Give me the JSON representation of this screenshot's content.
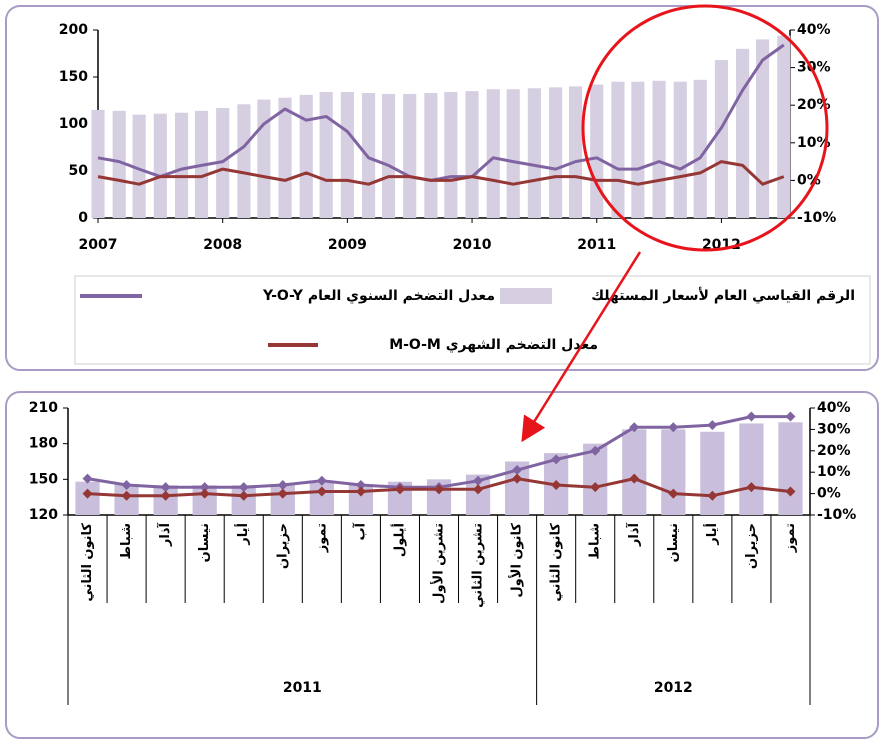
{
  "chart_data": [
    {
      "type": "bar_line",
      "x": [
        2007,
        2007.17,
        2007.33,
        2007.5,
        2007.67,
        2007.83,
        2008,
        2008.17,
        2008.33,
        2008.5,
        2008.67,
        2008.83,
        2009,
        2009.17,
        2009.33,
        2009.5,
        2009.67,
        2009.83,
        2010,
        2010.17,
        2010.33,
        2010.5,
        2010.67,
        2010.83,
        2011,
        2011.17,
        2011.33,
        2011.5,
        2011.67,
        2011.83,
        2012,
        2012.17,
        2012.33,
        2012.5
      ],
      "xlim": [
        2007,
        2012.55
      ],
      "xticks": [
        2007,
        2008,
        2009,
        2010,
        2011,
        2012
      ],
      "ylim": [
        0,
        200
      ],
      "yticks": [
        0,
        50,
        100,
        150,
        200
      ],
      "y2lim": [
        -10,
        40
      ],
      "y2ticks": [
        {
          "value": -10,
          "label": "-10%"
        },
        {
          "value": 0,
          "label": "0%"
        },
        {
          "value": 10,
          "label": "10%"
        },
        {
          "value": 20,
          "label": "20%"
        },
        {
          "value": 30,
          "label": "30%"
        },
        {
          "value": 40,
          "label": "40%"
        }
      ],
      "series": [
        {
          "name": "الرقم القياسي العام لأسعار المستهلك",
          "type": "bar",
          "color": "#d6cfe2",
          "values": [
            115,
            114,
            110,
            111,
            112,
            114,
            117,
            121,
            126,
            128,
            131,
            134,
            134,
            133,
            132,
            132,
            133,
            134,
            135,
            137,
            137,
            138,
            139,
            140,
            142,
            145,
            145,
            146,
            145,
            147,
            168,
            180,
            190,
            194
          ]
        },
        {
          "name": "معدل التضخم السنوي العام Y-O-Y",
          "type": "line",
          "axis": "y2",
          "color": "#8064a2",
          "values": [
            6,
            5,
            3,
            1,
            3,
            4,
            5,
            9,
            15,
            19,
            16,
            17,
            13,
            6,
            4,
            1,
            0,
            1,
            1,
            6,
            5,
            4,
            3,
            5,
            6,
            3,
            3,
            5,
            3,
            6,
            14,
            24,
            32,
            36
          ]
        },
        {
          "name": "معدل التضخم الشهري M-O-M",
          "type": "line",
          "axis": "y2",
          "color": "#953735",
          "values": [
            1,
            0,
            -1,
            1,
            1,
            1,
            3,
            2,
            1,
            0,
            2,
            0,
            0,
            -1,
            1,
            1,
            0,
            0,
            1,
            0,
            -1,
            0,
            1,
            1,
            0,
            0,
            -1,
            0,
            1,
            2,
            5,
            4,
            -1,
            1
          ]
        }
      ]
    },
    {
      "type": "bar_line",
      "categories": [
        "كانون الثاني",
        "شباط",
        "آذار",
        "نيسان",
        "أيار",
        "حزيران",
        "تموز",
        "آب",
        "أيلول",
        "تشرين الأول",
        "تشرين الثاني",
        "كانون الأول",
        "كانون الثاني",
        "شباط",
        "آذار",
        "نيسان",
        "أيار",
        "حزيران",
        "تموز"
      ],
      "category_years": [
        "2011",
        "2011",
        "2011",
        "2011",
        "2011",
        "2011",
        "2011",
        "2011",
        "2011",
        "2011",
        "2011",
        "2011",
        "2012",
        "2012",
        "2012",
        "2012",
        "2012",
        "2012",
        "2012"
      ],
      "ylim": [
        120,
        210
      ],
      "yticks": [
        120,
        150,
        180,
        210
      ],
      "y2lim": [
        -10,
        40
      ],
      "y2ticks": [
        {
          "value": -10,
          "label": "-10%"
        },
        {
          "value": 0,
          "label": "0%"
        },
        {
          "value": 10,
          "label": "10%"
        },
        {
          "value": 20,
          "label": "20%"
        },
        {
          "value": 30,
          "label": "30%"
        },
        {
          "value": 40,
          "label": "40%"
        }
      ],
      "series": [
        {
          "type": "bar",
          "color": "#c9bedb",
          "values": [
            148,
            146,
            145,
            145,
            145,
            146,
            147,
            146,
            148,
            150,
            154,
            165,
            172,
            180,
            192,
            192,
            190,
            197,
            198
          ]
        },
        {
          "type": "line",
          "axis": "y2",
          "color": "#8064a2",
          "markers": true,
          "values": [
            7,
            4,
            3,
            3,
            3,
            4,
            6,
            4,
            3,
            3,
            6,
            11,
            16,
            20,
            31,
            31,
            32,
            36,
            36
          ]
        },
        {
          "type": "line",
          "axis": "y2",
          "color": "#953735",
          "markers": true,
          "values": [
            0,
            -1,
            -1,
            0,
            -1,
            0,
            1,
            1,
            2,
            2,
            2,
            7,
            4,
            3,
            7,
            0,
            -1,
            3,
            1
          ]
        }
      ]
    }
  ]
}
